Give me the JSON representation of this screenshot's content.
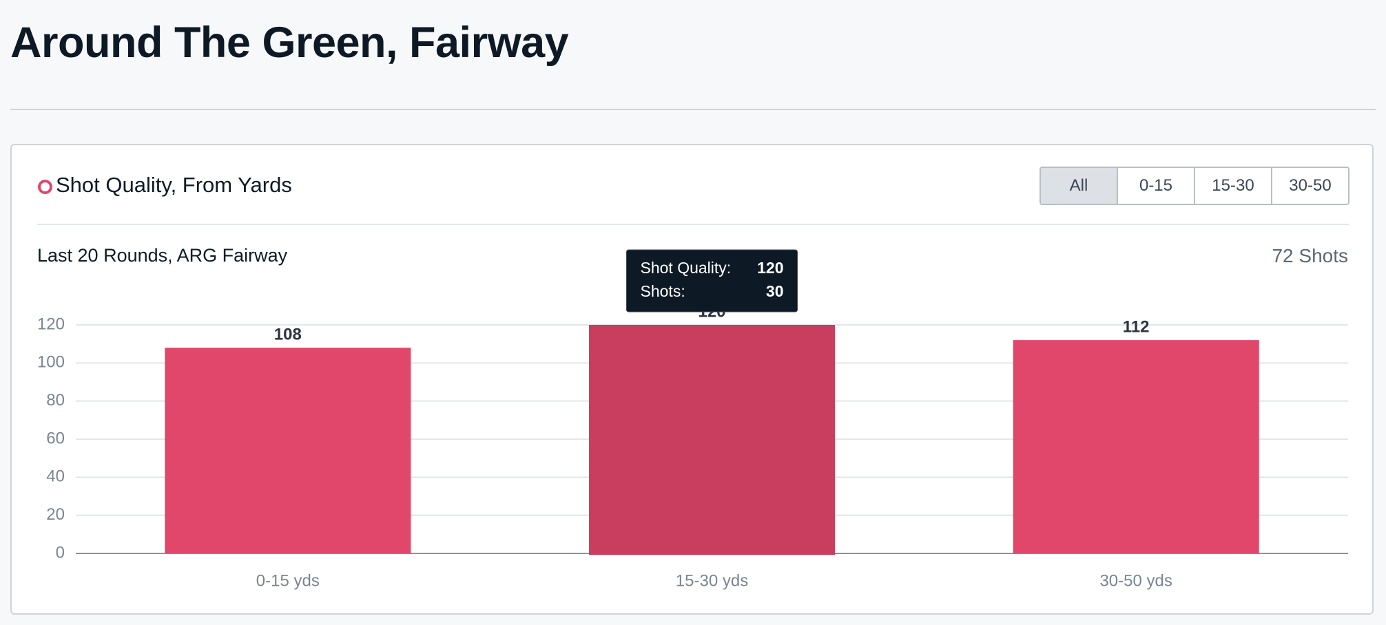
{
  "header": {
    "title": "Around The Green, Fairway"
  },
  "card": {
    "title": "Shot Quality, From Yards",
    "filters": [
      "All",
      "0-15",
      "15-30",
      "30-50"
    ],
    "subtitle": "Last 20 Rounds, ARG Fairway",
    "count": "72 Shots"
  },
  "chart_data": {
    "type": "bar",
    "categories": [
      "0-15 yds",
      "15-30 yds",
      "30-50 yds"
    ],
    "values": [
      108,
      120,
      112
    ],
    "color": "#e0476a",
    "hover_color": "#c93e5f",
    "hover_index": 1,
    "ylim": [
      0,
      120
    ],
    "yticks": [
      0,
      20,
      40,
      60,
      80,
      100,
      120
    ],
    "grid": true,
    "tooltip": {
      "rows": [
        {
          "label": "Shot Quality:",
          "value": 120
        },
        {
          "label": "Shots:",
          "value": 30
        }
      ]
    }
  }
}
